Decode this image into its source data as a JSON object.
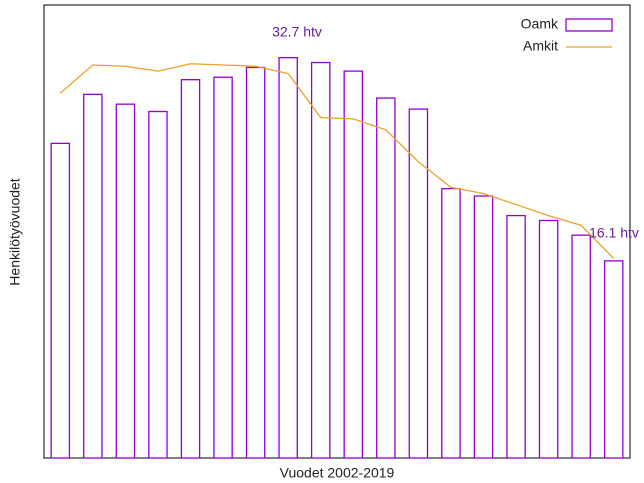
{
  "chart_data": {
    "type": "bar_line",
    "xlabel": "Vuodet 2002-2019",
    "ylabel": "Henkilötyövuodet",
    "annotations": [
      "32.7 htv",
      "16.1 htv"
    ],
    "ylim": [
      0,
      37
    ],
    "legend": "top-right",
    "series": [
      {
        "name": "Oamk",
        "type": "bar",
        "color": "#9400d3",
        "values": [
          25.7,
          29.7,
          28.9,
          28.3,
          30.9,
          31.1,
          31.9,
          32.7,
          32.3,
          31.6,
          29.4,
          28.5,
          22.0,
          21.4,
          19.8,
          19.4,
          18.2,
          16.1
        ]
      },
      {
        "name": "Amkit",
        "type": "line",
        "color": "#e8a32c",
        "values": [
          29.8,
          32.1,
          32.0,
          31.6,
          32.2,
          32.1,
          32.0,
          31.4,
          27.8,
          27.7,
          26.8,
          24.2,
          22.1,
          21.6,
          20.7,
          19.8,
          19.0,
          16.3
        ]
      }
    ]
  }
}
